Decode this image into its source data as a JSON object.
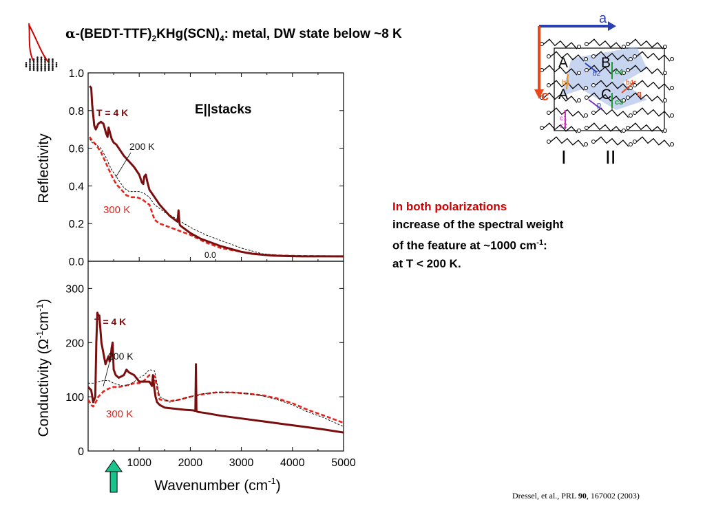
{
  "slide": {
    "title": {
      "alpha": "α",
      "part1": "-(BEDT-TTF)",
      "sub1": "2",
      "part2": "KHg(SCN)",
      "sub2": "4",
      "part3": ": metal, DW state below ~8 K"
    },
    "notes": {
      "line1": "In both polarizations",
      "line2": "increase of the spectral weight",
      "line3a": "of the feature at ~1000 cm",
      "line3sup": "-1",
      "line3b": ":",
      "line4": "at T < 200 K."
    },
    "citation": {
      "prefix": "Dressel, et al., PRL ",
      "volume": "90",
      "suffix": ", 167002 (2003)"
    },
    "colors": {
      "t4k": "#7a0d0d",
      "t300k": "#e8231b",
      "t200k": "#111111",
      "accent_red": "#d10000",
      "arrow_green": "#19c38b"
    }
  },
  "crystal": {
    "axis_a": "a",
    "axis_c": "c",
    "molecules": [
      "A",
      "B",
      "A",
      "C"
    ],
    "bonds": [
      "b2",
      "c4",
      "b4",
      "c3",
      "p",
      "q",
      "c1",
      "c2",
      "b1"
    ],
    "stacks": [
      "I",
      "II"
    ]
  },
  "chart_data": [
    {
      "type": "line",
      "panel": "reflectivity",
      "annotation": "E||stacks",
      "ylabel": "Reflectivity",
      "ylim": [
        0.0,
        1.0
      ],
      "yticks": [
        "0.0",
        "0.2",
        "0.4",
        "0.6",
        "0.8",
        "1.0"
      ],
      "xlim": [
        0,
        5000
      ],
      "inner_label": "0.0",
      "series": [
        {
          "name": "T = 4 K",
          "color": "#7a0d0d",
          "x": [
            30,
            60,
            80,
            120,
            150,
            200,
            250,
            300,
            350,
            380,
            400,
            420,
            440,
            460,
            500,
            550,
            600,
            700,
            800,
            900,
            1000,
            1050,
            1080,
            1100,
            1130,
            1160,
            1200,
            1300,
            1400,
            1500,
            1600,
            1700,
            1750,
            1760,
            1770,
            1780,
            1790,
            1800,
            1900,
            2000,
            2200,
            2400,
            2600,
            2800,
            3000,
            3200,
            3400,
            3600,
            3800,
            4000,
            4200,
            4500,
            5000
          ],
          "y": [
            0.93,
            0.92,
            0.83,
            0.72,
            0.7,
            0.73,
            0.74,
            0.73,
            0.68,
            0.66,
            0.71,
            0.69,
            0.67,
            0.65,
            0.63,
            0.62,
            0.6,
            0.56,
            0.53,
            0.5,
            0.46,
            0.42,
            0.41,
            0.45,
            0.46,
            0.42,
            0.38,
            0.34,
            0.3,
            0.27,
            0.24,
            0.22,
            0.21,
            0.24,
            0.27,
            0.23,
            0.2,
            0.19,
            0.17,
            0.15,
            0.12,
            0.1,
            0.08,
            0.065,
            0.05,
            0.04,
            0.035,
            0.03,
            0.028,
            0.027,
            0.026,
            0.026,
            0.026
          ]
        },
        {
          "name": "200 K",
          "color": "#111111",
          "x": [
            30,
            80,
            150,
            250,
            350,
            450,
            550,
            650,
            700,
            800,
            900,
            1000,
            1100,
            1200,
            1300,
            1500,
            1700,
            2000,
            2300,
            2600,
            3000,
            3400,
            3800,
            4200,
            4600,
            5000
          ],
          "y": [
            0.65,
            0.63,
            0.62,
            0.6,
            0.55,
            0.49,
            0.45,
            0.41,
            0.39,
            0.37,
            0.37,
            0.37,
            0.36,
            0.34,
            0.3,
            0.26,
            0.23,
            0.18,
            0.14,
            0.11,
            0.07,
            0.04,
            0.03,
            0.028,
            0.027,
            0.025
          ]
        },
        {
          "name": "300 K",
          "color": "#e8231b",
          "x": [
            30,
            80,
            150,
            250,
            350,
            450,
            550,
            650,
            750,
            850,
            950,
            1050,
            1150,
            1200,
            1300,
            1400,
            1500,
            1700,
            2000,
            2300,
            2600,
            3000,
            3400,
            3800,
            4200,
            4600,
            5000
          ],
          "y": [
            0.66,
            0.64,
            0.62,
            0.58,
            0.52,
            0.46,
            0.41,
            0.38,
            0.35,
            0.34,
            0.34,
            0.33,
            0.31,
            0.3,
            0.22,
            0.2,
            0.19,
            0.17,
            0.14,
            0.1,
            0.07,
            0.05,
            0.035,
            0.03,
            0.028,
            0.027,
            0.025
          ]
        }
      ],
      "labels": [
        {
          "text": "T = 4 K",
          "color": "#7a0d0d"
        },
        {
          "text": "200 K",
          "color": "#111111"
        },
        {
          "text": "300 K",
          "color": "#e8231b"
        }
      ]
    },
    {
      "type": "line",
      "panel": "conductivity",
      "ylabel_text": "Conductivity (",
      "ylabel_omega": "Ω",
      "ylabel_sup1": "-1",
      "ylabel_cm": "cm",
      "ylabel_sup2": "-1",
      "ylabel_close": ")",
      "ylim": [
        0,
        350
      ],
      "yticks": [
        "0",
        "100",
        "200",
        "300"
      ],
      "xlabel_text": "Wavenumber (cm",
      "xlabel_sup": "-1",
      "xlabel_close": ")",
      "xlim": [
        0,
        5000
      ],
      "xticks": [
        "1000",
        "2000",
        "3000",
        "4000",
        "5000"
      ],
      "marker_x": 500,
      "series": [
        {
          "name": "T = 4 K",
          "color": "#7a0d0d",
          "x": [
            0,
            60,
            100,
            140,
            160,
            180,
            200,
            220,
            260,
            300,
            340,
            380,
            400,
            420,
            440,
            460,
            480,
            500,
            540,
            600,
            700,
            750,
            800,
            900,
            1000,
            1100,
            1200,
            1250,
            1270,
            1290,
            1320,
            1350,
            1400,
            1500,
            1700,
            1900,
            2050,
            2100,
            2110,
            2120,
            2130,
            2150,
            2300,
            2600,
            3000,
            3400,
            3800,
            4200,
            4600,
            5000
          ],
          "y": [
            118,
            112,
            90,
            100,
            200,
            255,
            250,
            250,
            200,
            180,
            160,
            170,
            175,
            165,
            170,
            190,
            200,
            150,
            140,
            135,
            140,
            150,
            145,
            140,
            128,
            128,
            128,
            120,
            140,
            120,
            100,
            90,
            85,
            80,
            78,
            76,
            75,
            74,
            160,
            74,
            73,
            72,
            70,
            65,
            60,
            55,
            50,
            45,
            40,
            34
          ]
        },
        {
          "name": "200 K",
          "color": "#111111",
          "x": [
            0,
            100,
            200,
            300,
            400,
            500,
            600,
            700,
            800,
            900,
            1000,
            1100,
            1200,
            1300,
            1400,
            1600,
            1800,
            2000,
            2200,
            2500,
            2800,
            3100,
            3400,
            3700,
            4000,
            4300,
            4600,
            5000
          ],
          "y": [
            125,
            125,
            128,
            130,
            130,
            125,
            122,
            120,
            122,
            128,
            135,
            140,
            150,
            148,
            100,
            90,
            95,
            100,
            105,
            108,
            108,
            106,
            102,
            95,
            85,
            72,
            62,
            45
          ]
        },
        {
          "name": "300 K",
          "color": "#e8231b",
          "x": [
            0,
            60,
            100,
            150,
            200,
            300,
            400,
            500,
            600,
            700,
            800,
            900,
            1000,
            1100,
            1200,
            1300,
            1400,
            1600,
            1800,
            2000,
            2200,
            2500,
            2800,
            3100,
            3400,
            3700,
            4000,
            4300,
            4600,
            5000
          ],
          "y": [
            95,
            85,
            82,
            90,
            100,
            110,
            115,
            118,
            118,
            120,
            122,
            125,
            125,
            130,
            140,
            138,
            95,
            92,
            95,
            100,
            104,
            108,
            108,
            106,
            103,
            97,
            88,
            76,
            66,
            52
          ]
        }
      ],
      "labels": [
        {
          "text": "T = 4 K",
          "color": "#7a0d0d"
        },
        {
          "text": "200 K",
          "color": "#111111"
        },
        {
          "text": "300 K",
          "color": "#e8231b"
        }
      ]
    }
  ]
}
